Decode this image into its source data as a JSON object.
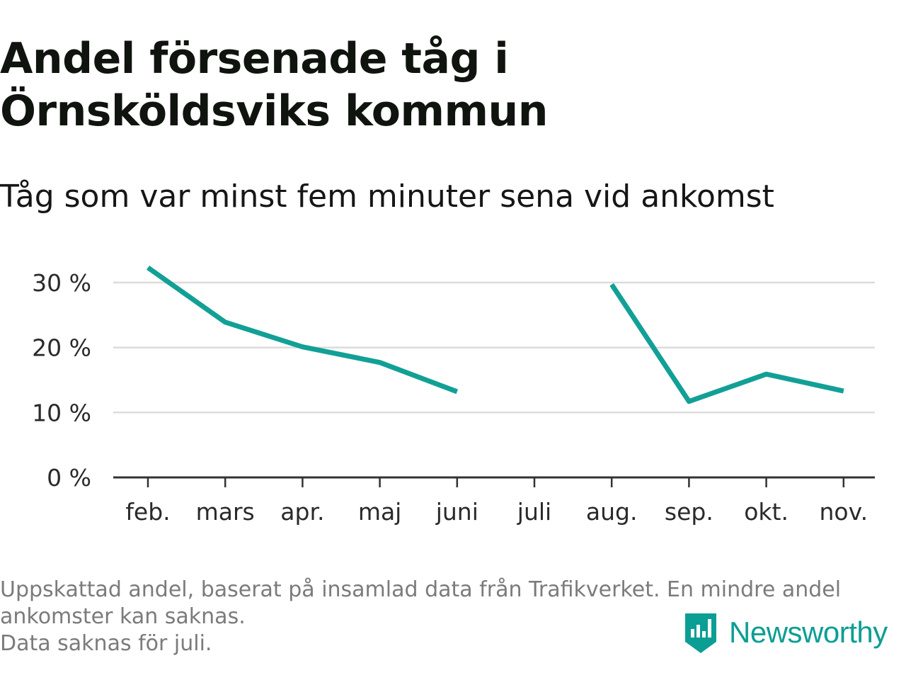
{
  "title": "Andel försenade tåg i Örnsköldsviks kommun",
  "subtitle": "Tåg som var minst fem minuter sena vid ankomst",
  "footnote": {
    "line1": "Uppskattad andel, baserat på insamlad data från Trafikverket. En mindre andel",
    "line2": "ankomster kan saknas.",
    "line3": "Data saknas för juli."
  },
  "brand": {
    "name": "Newsworthy",
    "icon": "newsworthy-logo-icon",
    "color": "#0b9e94"
  },
  "colors": {
    "line": "#12a096",
    "grid": "#dcdcdc",
    "axis": "#333333"
  },
  "chart_data": {
    "type": "line",
    "categories": [
      "feb.",
      "mars",
      "apr.",
      "maj",
      "juni",
      "juli",
      "aug.",
      "sep.",
      "okt.",
      "nov."
    ],
    "series": [
      {
        "values": [
          32.3,
          23.9,
          20.1,
          17.7,
          13.2,
          null,
          29.7,
          11.7,
          15.9,
          13.3
        ]
      }
    ],
    "y_ticks": [
      0,
      10,
      20,
      30
    ],
    "y_tick_labels": [
      "0 %",
      "10 %",
      "20 %",
      "30 %"
    ],
    "ylim": [
      0,
      33
    ],
    "grid": true,
    "legend": "none",
    "missing": [
      "juli"
    ]
  }
}
